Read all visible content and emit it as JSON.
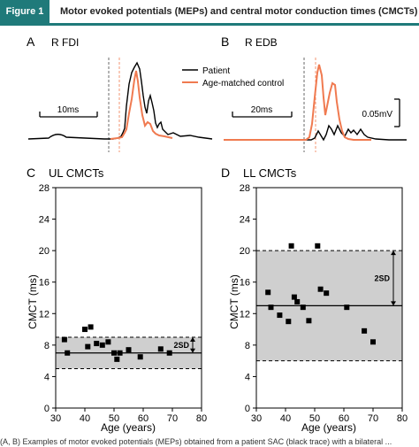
{
  "figure": {
    "tag": "Figure 1",
    "title": "Motor evoked potentials (MEPs) and central motor conduction times (CMCTs)",
    "caption": "(A, B) Examples of motor evoked potentials (MEPs) obtained from a patient SAC (black trace) with a bilateral ... "
  },
  "chart_data": [
    {
      "type": "line",
      "panel_letter": "A",
      "title": "R FDI",
      "scale_bar": "10ms",
      "series": [
        {
          "name": "Patient",
          "color": "#000000"
        },
        {
          "name": "Age-matched control",
          "color": "#f07a50"
        }
      ]
    },
    {
      "type": "line",
      "panel_letter": "B",
      "title": "R EDB",
      "scale_bar": "20ms",
      "amplitude_bar": "0.05mV",
      "series": [
        {
          "name": "Patient",
          "color": "#000000"
        },
        {
          "name": "Age-matched control",
          "color": "#f07a50"
        }
      ]
    },
    {
      "type": "scatter",
      "panel_letter": "C",
      "title": "UL CMCTs",
      "xlabel": "Age (years)",
      "ylabel": "CMCT (ms)",
      "xlim": [
        30,
        80
      ],
      "ylim": [
        0,
        28
      ],
      "xticks": [
        30,
        40,
        50,
        60,
        70,
        80
      ],
      "yticks": [
        0,
        4,
        8,
        12,
        16,
        20,
        24,
        28
      ],
      "mean": 7.0,
      "band": [
        5.0,
        9.0
      ],
      "band_label": "2SD",
      "points": [
        {
          "x": 33,
          "y": 8.7
        },
        {
          "x": 34,
          "y": 7.0
        },
        {
          "x": 40,
          "y": 10.0
        },
        {
          "x": 41,
          "y": 7.8
        },
        {
          "x": 42,
          "y": 10.3
        },
        {
          "x": 44,
          "y": 8.2
        },
        {
          "x": 46,
          "y": 8.0
        },
        {
          "x": 48,
          "y": 8.4
        },
        {
          "x": 50,
          "y": 7.0
        },
        {
          "x": 51,
          "y": 6.2
        },
        {
          "x": 52,
          "y": 7.0
        },
        {
          "x": 55,
          "y": 7.4
        },
        {
          "x": 59,
          "y": 6.5
        },
        {
          "x": 66,
          "y": 7.5
        },
        {
          "x": 69,
          "y": 7.0
        }
      ]
    },
    {
      "type": "scatter",
      "panel_letter": "D",
      "title": "LL CMCTs",
      "xlabel": "Age (years)",
      "ylabel": "CMCT (ms)",
      "xlim": [
        30,
        80
      ],
      "ylim": [
        0,
        28
      ],
      "xticks": [
        30,
        40,
        50,
        60,
        70,
        80
      ],
      "yticks": [
        0,
        4,
        8,
        12,
        16,
        20,
        24,
        28
      ],
      "mean": 13.0,
      "band": [
        6.0,
        20.0
      ],
      "band_label": "2SD",
      "points": [
        {
          "x": 34,
          "y": 14.7
        },
        {
          "x": 35,
          "y": 12.8
        },
        {
          "x": 38,
          "y": 11.8
        },
        {
          "x": 41,
          "y": 11.0
        },
        {
          "x": 42,
          "y": 20.6
        },
        {
          "x": 43,
          "y": 14.1
        },
        {
          "x": 44,
          "y": 13.5
        },
        {
          "x": 46,
          "y": 12.8
        },
        {
          "x": 48,
          "y": 11.1
        },
        {
          "x": 51,
          "y": 20.6
        },
        {
          "x": 52,
          "y": 15.1
        },
        {
          "x": 54,
          "y": 14.6
        },
        {
          "x": 61,
          "y": 12.8
        },
        {
          "x": 67,
          "y": 9.8
        },
        {
          "x": 70,
          "y": 8.4
        }
      ]
    }
  ]
}
